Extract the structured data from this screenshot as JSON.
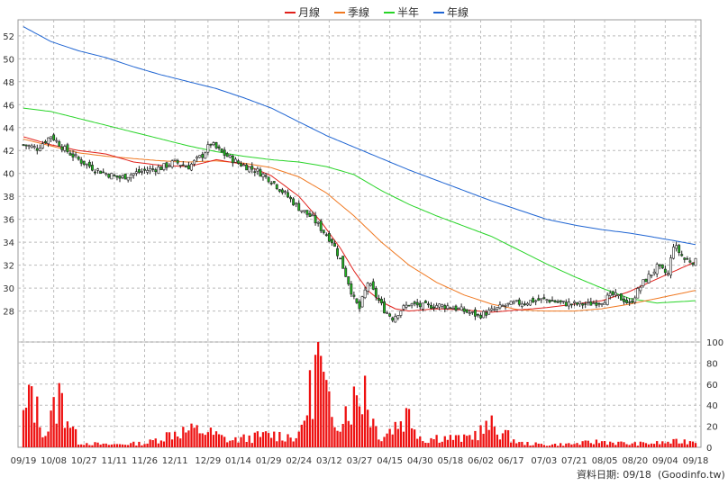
{
  "chart_data": {
    "type": "candlestick",
    "legend": [
      {
        "name": "月線",
        "color": "#e0201b"
      },
      {
        "name": "季線",
        "color": "#f07820"
      },
      {
        "name": "半年",
        "color": "#27d427"
      },
      {
        "name": "年線",
        "color": "#1e64d2"
      }
    ],
    "legend_placement": "top-center",
    "grid": true,
    "price_axis": {
      "ticks": [
        28,
        30,
        32,
        34,
        36,
        38,
        40,
        42,
        44,
        46,
        48,
        50,
        52
      ],
      "range": [
        25.3,
        53.4
      ],
      "side": "left"
    },
    "volume_axis": {
      "ticks": [
        0,
        20,
        40,
        60,
        80,
        100
      ],
      "range": [
        0,
        100
      ],
      "side": "right"
    },
    "x_tick_labels": [
      "09/19",
      "10/08",
      "10/27",
      "11/11",
      "11/26",
      "12/11",
      "12/29",
      "01/14",
      "01/29",
      "02/24",
      "03/12",
      "03/27",
      "04/15",
      "04/30",
      "05/18",
      "06/02",
      "06/17",
      "07/03",
      "07/21",
      "08/05",
      "08/20",
      "09/04",
      "09/18"
    ],
    "n_bars": 245,
    "price_keyframes": [
      [
        0,
        42.5
      ],
      [
        5,
        42.2
      ],
      [
        10,
        43.3
      ],
      [
        15,
        42.1
      ],
      [
        20,
        41.2
      ],
      [
        25,
        40.5
      ],
      [
        30,
        40.0
      ],
      [
        35,
        39.6
      ],
      [
        40,
        40.0
      ],
      [
        45,
        40.3
      ],
      [
        50,
        40.5
      ],
      [
        55,
        41.0
      ],
      [
        60,
        40.6
      ],
      [
        65,
        41.6
      ],
      [
        68,
        42.6
      ],
      [
        72,
        41.8
      ],
      [
        78,
        40.9
      ],
      [
        85,
        40.2
      ],
      [
        90,
        39.4
      ],
      [
        95,
        38.2
      ],
      [
        100,
        37.0
      ],
      [
        105,
        36.1
      ],
      [
        108,
        35.2
      ],
      [
        112,
        34.1
      ],
      [
        115,
        32.5
      ],
      [
        118,
        30.5
      ],
      [
        120,
        29.0
      ],
      [
        122,
        28.2
      ],
      [
        125,
        30.5
      ],
      [
        128,
        29.3
      ],
      [
        131,
        28.1
      ],
      [
        134,
        27.4
      ],
      [
        137,
        28.1
      ],
      [
        140,
        28.6
      ],
      [
        145,
        28.4
      ],
      [
        150,
        28.5
      ],
      [
        155,
        28.4
      ],
      [
        160,
        28.0
      ],
      [
        165,
        27.6
      ],
      [
        170,
        28.0
      ],
      [
        175,
        28.5
      ],
      [
        180,
        28.7
      ],
      [
        185,
        28.9
      ],
      [
        190,
        29.0
      ],
      [
        195,
        28.7
      ],
      [
        200,
        28.6
      ],
      [
        205,
        28.6
      ],
      [
        210,
        28.9
      ],
      [
        214,
        29.4
      ],
      [
        218,
        29.0
      ],
      [
        220,
        28.6
      ],
      [
        225,
        30.5
      ],
      [
        230,
        31.8
      ],
      [
        234,
        31.2
      ],
      [
        236,
        33.8
      ],
      [
        240,
        32.5
      ],
      [
        244,
        32.3
      ]
    ],
    "ma_month": [
      [
        0,
        43.2
      ],
      [
        10,
        42.5
      ],
      [
        20,
        42.0
      ],
      [
        30,
        41.7
      ],
      [
        40,
        41.0
      ],
      [
        50,
        40.7
      ],
      [
        60,
        40.6
      ],
      [
        70,
        41.2
      ],
      [
        80,
        40.8
      ],
      [
        90,
        39.8
      ],
      [
        100,
        38.0
      ],
      [
        108,
        35.8
      ],
      [
        115,
        33.5
      ],
      [
        120,
        31.5
      ],
      [
        125,
        29.8
      ],
      [
        130,
        28.8
      ],
      [
        135,
        28.2
      ],
      [
        140,
        28.0
      ],
      [
        150,
        28.2
      ],
      [
        160,
        28.1
      ],
      [
        170,
        27.9
      ],
      [
        180,
        28.1
      ],
      [
        190,
        28.3
      ],
      [
        200,
        28.6
      ],
      [
        210,
        28.9
      ],
      [
        220,
        29.7
      ],
      [
        230,
        30.8
      ],
      [
        244,
        32.3
      ]
    ],
    "ma_quarter": [
      [
        0,
        43.0
      ],
      [
        10,
        42.4
      ],
      [
        20,
        41.8
      ],
      [
        30,
        41.5
      ],
      [
        40,
        41.3
      ],
      [
        50,
        41.1
      ],
      [
        60,
        41.0
      ],
      [
        70,
        41.1
      ],
      [
        80,
        40.9
      ],
      [
        90,
        40.5
      ],
      [
        100,
        39.7
      ],
      [
        110,
        38.3
      ],
      [
        120,
        36.3
      ],
      [
        130,
        34.0
      ],
      [
        140,
        32.0
      ],
      [
        150,
        30.5
      ],
      [
        160,
        29.4
      ],
      [
        170,
        28.6
      ],
      [
        180,
        28.1
      ],
      [
        190,
        28.0
      ],
      [
        200,
        28.0
      ],
      [
        210,
        28.2
      ],
      [
        220,
        28.6
      ],
      [
        230,
        29.1
      ],
      [
        244,
        29.8
      ]
    ],
    "ma_halfyear": [
      [
        0,
        45.7
      ],
      [
        10,
        45.4
      ],
      [
        20,
        44.8
      ],
      [
        30,
        44.2
      ],
      [
        40,
        43.6
      ],
      [
        50,
        43.0
      ],
      [
        60,
        42.4
      ],
      [
        70,
        41.9
      ],
      [
        80,
        41.5
      ],
      [
        90,
        41.2
      ],
      [
        100,
        41.0
      ],
      [
        110,
        40.6
      ],
      [
        120,
        39.9
      ],
      [
        130,
        38.5
      ],
      [
        140,
        37.3
      ],
      [
        150,
        36.3
      ],
      [
        160,
        35.4
      ],
      [
        170,
        34.5
      ],
      [
        180,
        33.3
      ],
      [
        190,
        32.1
      ],
      [
        200,
        31.0
      ],
      [
        210,
        30.0
      ],
      [
        220,
        29.1
      ],
      [
        230,
        28.7
      ],
      [
        244,
        28.9
      ]
    ],
    "ma_year": [
      [
        0,
        52.8
      ],
      [
        10,
        51.5
      ],
      [
        20,
        50.7
      ],
      [
        30,
        50.1
      ],
      [
        40,
        49.3
      ],
      [
        50,
        48.6
      ],
      [
        60,
        48.0
      ],
      [
        70,
        47.4
      ],
      [
        80,
        46.6
      ],
      [
        90,
        45.7
      ],
      [
        100,
        44.5
      ],
      [
        110,
        43.3
      ],
      [
        120,
        42.3
      ],
      [
        130,
        41.3
      ],
      [
        140,
        40.3
      ],
      [
        150,
        39.4
      ],
      [
        160,
        38.5
      ],
      [
        170,
        37.6
      ],
      [
        180,
        36.8
      ],
      [
        190,
        36.0
      ],
      [
        200,
        35.5
      ],
      [
        210,
        35.1
      ],
      [
        220,
        34.8
      ],
      [
        230,
        34.4
      ],
      [
        244,
        33.8
      ]
    ],
    "volume_keyframes": [
      [
        0,
        35
      ],
      [
        3,
        60
      ],
      [
        8,
        15
      ],
      [
        13,
        60
      ],
      [
        16,
        38
      ],
      [
        20,
        6
      ],
      [
        30,
        3
      ],
      [
        45,
        5
      ],
      [
        55,
        18
      ],
      [
        65,
        20
      ],
      [
        75,
        8
      ],
      [
        90,
        15
      ],
      [
        100,
        12
      ],
      [
        107,
        100
      ],
      [
        112,
        30
      ],
      [
        124,
        68
      ],
      [
        127,
        30
      ],
      [
        130,
        12
      ],
      [
        140,
        40
      ],
      [
        145,
        8
      ],
      [
        150,
        12
      ],
      [
        160,
        10
      ],
      [
        170,
        25
      ],
      [
        180,
        5
      ],
      [
        190,
        3
      ],
      [
        200,
        4
      ],
      [
        210,
        7
      ],
      [
        220,
        4
      ],
      [
        230,
        5
      ],
      [
        244,
        8
      ]
    ]
  },
  "footer": {
    "source_label": "資料日期: 09/18",
    "site_label": "(Goodinfo.tw)"
  }
}
